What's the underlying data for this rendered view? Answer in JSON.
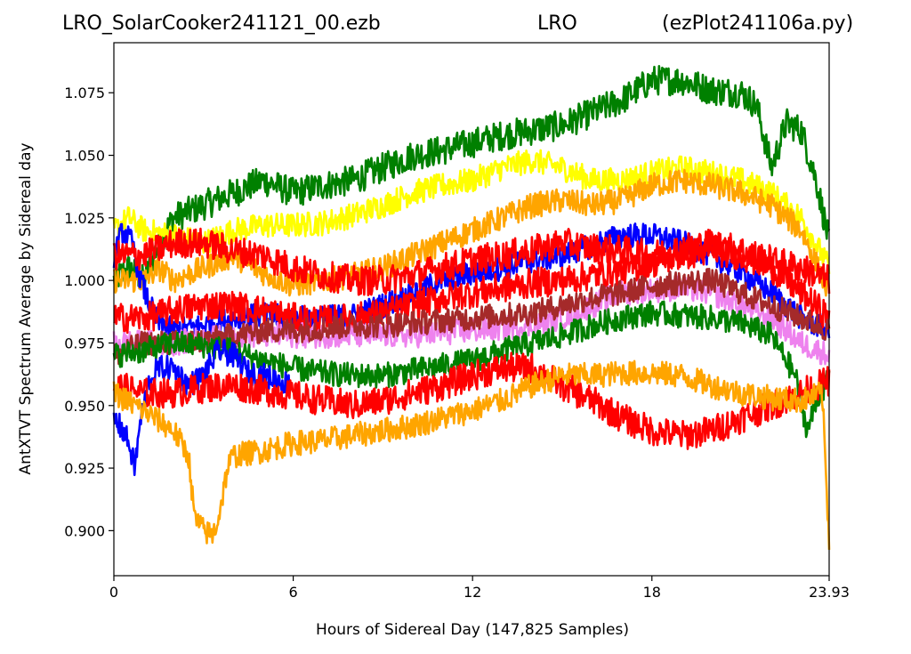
{
  "chart_data": {
    "type": "line",
    "title_left": "LRO_SolarCooker241121_00.ezb",
    "title_center": "LRO",
    "title_right": "(ezPlot241106a.py)",
    "xlabel": "Hours of Sidereal Day  (147,825 Samples)",
    "ylabel": "AntXTVT Spectrum Average by Sidereal day",
    "xlim": [
      0,
      23.93
    ],
    "ylim": [
      0.882,
      1.095
    ],
    "xticks": [
      0,
      6,
      12,
      18,
      23.93
    ],
    "xtick_labels": [
      "0",
      "6",
      "12",
      "18",
      "23.93"
    ],
    "yticks": [
      0.9,
      0.925,
      0.95,
      0.975,
      1.0,
      1.025,
      1.05,
      1.075
    ],
    "ytick_labels": [
      "0.900",
      "0.925",
      "0.950",
      "0.975",
      "1.000",
      "1.025",
      "1.050",
      "1.075"
    ],
    "grid": false,
    "legend": false,
    "series": [
      {
        "color": "#008000",
        "noise": 0.006,
        "x": [
          0,
          0.5,
          1,
          1.5,
          2,
          3,
          4,
          5,
          6,
          7,
          8,
          9,
          10,
          11,
          12,
          13,
          14,
          15,
          16,
          17,
          18,
          19,
          20,
          21,
          21.5,
          22,
          22.5,
          23,
          23.5,
          23.93
        ],
        "y": [
          1.0,
          1.005,
          1.0,
          1.015,
          1.025,
          1.03,
          1.035,
          1.04,
          1.035,
          1.038,
          1.04,
          1.045,
          1.05,
          1.052,
          1.055,
          1.058,
          1.06,
          1.062,
          1.067,
          1.072,
          1.08,
          1.08,
          1.076,
          1.075,
          1.07,
          1.045,
          1.063,
          1.06,
          1.04,
          1.015
        ]
      },
      {
        "color": "#ffff00",
        "noise": 0.005,
        "x": [
          0,
          0.5,
          1,
          2,
          3,
          4,
          5,
          6,
          7,
          8,
          9,
          10,
          11,
          12,
          13,
          14,
          15,
          16,
          17,
          18,
          19,
          20,
          21,
          22,
          23,
          23.93
        ],
        "y": [
          1.02,
          1.025,
          1.02,
          1.018,
          1.015,
          1.02,
          1.022,
          1.022,
          1.023,
          1.026,
          1.03,
          1.035,
          1.038,
          1.04,
          1.045,
          1.048,
          1.045,
          1.04,
          1.04,
          1.043,
          1.045,
          1.043,
          1.04,
          1.035,
          1.025,
          1.005
        ]
      },
      {
        "color": "#ffa500",
        "noise": 0.005,
        "x": [
          0,
          1,
          1.5,
          2,
          3,
          4,
          5,
          6,
          7,
          8,
          9,
          10,
          11,
          12,
          13,
          14,
          15,
          16,
          17,
          18,
          19,
          20,
          21,
          22,
          23,
          23.93
        ],
        "y": [
          1.0,
          1.0,
          1.005,
          1.0,
          1.005,
          1.01,
          1.003,
          0.998,
          1.0,
          1.002,
          1.005,
          1.01,
          1.015,
          1.02,
          1.025,
          1.03,
          1.032,
          1.03,
          1.032,
          1.038,
          1.04,
          1.038,
          1.035,
          1.03,
          1.02,
          0.995
        ]
      },
      {
        "color": "#0000ff",
        "noise": 0.005,
        "x": [
          0,
          0.3,
          0.6,
          0.9,
          1.2,
          1.5,
          2,
          3,
          4,
          5,
          6,
          7,
          8,
          9,
          10,
          11,
          12,
          13,
          14,
          15,
          16,
          17,
          18,
          19,
          20,
          21,
          22,
          23,
          23.93
        ],
        "y": [
          1.01,
          1.02,
          1.015,
          1.0,
          0.99,
          0.983,
          0.98,
          0.982,
          0.985,
          0.986,
          0.985,
          0.985,
          0.986,
          0.99,
          0.995,
          1.0,
          1.003,
          1.005,
          1.008,
          1.01,
          1.014,
          1.018,
          1.018,
          1.015,
          1.01,
          1.003,
          0.995,
          0.985,
          0.98
        ]
      },
      {
        "color": "#ff0000",
        "noise": 0.006,
        "x": [
          0,
          1,
          2,
          3,
          4,
          5,
          6,
          7,
          8,
          9,
          10,
          11,
          12,
          13,
          14,
          15,
          16,
          17,
          18,
          19,
          20,
          21,
          22,
          23,
          23.93
        ],
        "y": [
          1.01,
          1.01,
          1.015,
          1.015,
          1.012,
          1.01,
          1.005,
          1.002,
          1.0,
          1.0,
          1.002,
          1.005,
          1.008,
          1.01,
          1.012,
          1.015,
          1.013,
          1.012,
          1.01,
          1.013,
          1.015,
          1.012,
          1.008,
          1.005,
          1.0
        ]
      },
      {
        "color": "#ff0000",
        "noise": 0.006,
        "x": [
          0,
          1,
          2,
          3,
          4,
          5,
          6,
          7,
          8,
          9,
          10,
          11,
          12,
          13,
          14,
          15,
          16,
          17,
          18,
          19,
          20,
          21,
          22,
          23,
          23.93
        ],
        "y": [
          0.985,
          0.985,
          0.988,
          0.99,
          0.99,
          0.988,
          0.985,
          0.984,
          0.985,
          0.987,
          0.99,
          0.993,
          0.995,
          0.997,
          0.999,
          1.0,
          1.002,
          1.004,
          1.007,
          1.01,
          1.012,
          1.01,
          1.005,
          0.995,
          0.985
        ]
      },
      {
        "color": "#ee82ee",
        "noise": 0.005,
        "x": [
          0,
          2,
          4,
          6,
          8,
          10,
          12,
          14,
          15,
          16,
          17,
          18,
          19,
          20,
          21,
          22,
          23,
          23.93
        ],
        "y": [
          0.975,
          0.975,
          0.978,
          0.978,
          0.978,
          0.978,
          0.98,
          0.982,
          0.985,
          0.99,
          0.995,
          0.996,
          0.997,
          0.995,
          0.99,
          0.985,
          0.975,
          0.97
        ]
      },
      {
        "color": "#a52a2a",
        "noise": 0.005,
        "x": [
          0,
          1,
          2,
          3,
          4,
          5,
          6,
          7,
          8,
          9,
          10,
          11,
          12,
          13,
          14,
          15,
          16,
          17,
          18,
          19,
          20,
          21,
          22,
          23,
          23.93
        ],
        "y": [
          0.97,
          0.975,
          0.975,
          0.976,
          0.978,
          0.98,
          0.98,
          0.981,
          0.982,
          0.982,
          0.983,
          0.984,
          0.985,
          0.986,
          0.987,
          0.99,
          0.993,
          0.995,
          0.998,
          0.999,
          1.0,
          0.995,
          0.99,
          0.985,
          0.98
        ]
      },
      {
        "color": "#008000",
        "noise": 0.005,
        "x": [
          0,
          1,
          2,
          3,
          4,
          5,
          6,
          7,
          8,
          9,
          10,
          11,
          12,
          13,
          14,
          15,
          16,
          17,
          18,
          19,
          20,
          21,
          22,
          22.8,
          23.2,
          23.6,
          23.93
        ],
        "y": [
          0.97,
          0.972,
          0.975,
          0.974,
          0.972,
          0.968,
          0.965,
          0.963,
          0.962,
          0.962,
          0.964,
          0.966,
          0.968,
          0.972,
          0.975,
          0.978,
          0.982,
          0.985,
          0.987,
          0.986,
          0.985,
          0.983,
          0.978,
          0.962,
          0.94,
          0.955,
          0.96
        ]
      },
      {
        "color": "#0000ff",
        "noise": 0.005,
        "x": [
          0,
          0.3,
          0.5,
          0.7,
          0.9,
          1.2,
          1.5,
          2,
          2.5,
          3,
          3.5,
          4,
          4.5,
          5,
          5.5,
          6
        ],
        "y": [
          0.945,
          0.94,
          0.935,
          0.925,
          0.945,
          0.96,
          0.965,
          0.965,
          0.958,
          0.962,
          0.972,
          0.97,
          0.963,
          0.962,
          0.96,
          0.958
        ]
      },
      {
        "color": "#ff0000",
        "noise": 0.006,
        "x": [
          0,
          1,
          2,
          3,
          4,
          5,
          6,
          7,
          8,
          9,
          10,
          11,
          12,
          13,
          14,
          15,
          16,
          17,
          18,
          19,
          20,
          21,
          22,
          23,
          23.93
        ],
        "y": [
          0.958,
          0.955,
          0.955,
          0.957,
          0.958,
          0.956,
          0.954,
          0.952,
          0.95,
          0.952,
          0.955,
          0.958,
          0.962,
          0.965,
          0.965,
          0.958,
          0.952,
          0.945,
          0.94,
          0.938,
          0.94,
          0.945,
          0.95,
          0.955,
          0.96
        ]
      },
      {
        "color": "#ffa500",
        "noise": 0.005,
        "x": [
          0,
          1,
          2,
          2.5,
          2.7,
          3,
          3.3,
          3.5,
          3.8,
          4,
          5,
          6,
          7,
          8,
          9,
          10,
          11,
          12,
          13,
          14,
          15,
          16,
          17,
          18,
          19,
          20,
          21,
          22,
          23,
          23.7,
          23.93
        ],
        "y": [
          0.955,
          0.948,
          0.94,
          0.93,
          0.905,
          0.9,
          0.898,
          0.905,
          0.925,
          0.93,
          0.932,
          0.935,
          0.936,
          0.938,
          0.94,
          0.942,
          0.945,
          0.948,
          0.952,
          0.958,
          0.962,
          0.962,
          0.963,
          0.963,
          0.962,
          0.958,
          0.955,
          0.953,
          0.952,
          0.955,
          0.895
        ]
      }
    ]
  }
}
